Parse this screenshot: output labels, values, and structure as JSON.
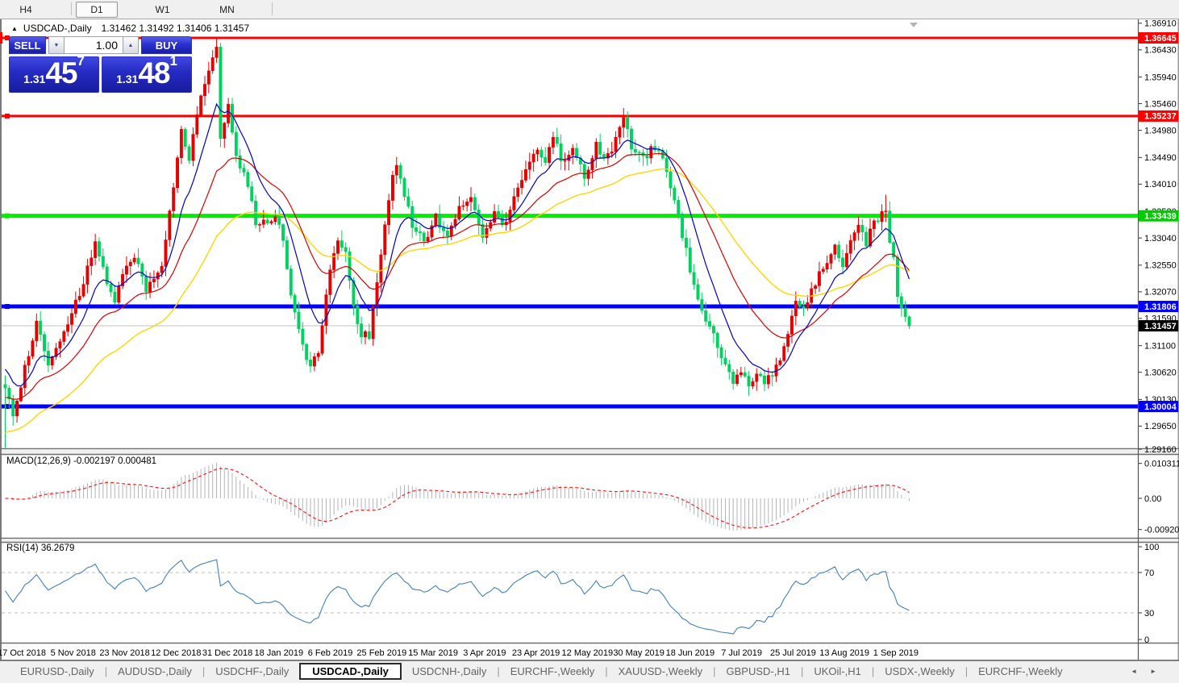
{
  "toolbar": {
    "timeframes": [
      {
        "label": "H4",
        "active": false
      },
      {
        "label": "D1",
        "active": true
      },
      {
        "label": "W1",
        "active": false
      },
      {
        "label": "MN",
        "active": false
      }
    ]
  },
  "chart": {
    "title_symbol": "USDCAD-,Daily",
    "title_ohlc": "1.31462 1.31492 1.31406 1.31457",
    "macd_label": "MACD(12,26,9) -0.002197 0.000481",
    "rsi_label": "RSI(14) 36.2679"
  },
  "trade_widget": {
    "sell_label": "SELL",
    "buy_label": "BUY",
    "volume": "1.00",
    "spinner_down": "▼",
    "spinner_up": "▲",
    "sell_price": {
      "prefix": "1.31",
      "big": "45",
      "sup": "7"
    },
    "buy_price": {
      "prefix": "1.31",
      "big": "48",
      "sup": "1"
    }
  },
  "price_axis": {
    "labels": [
      "1.36910",
      "1.36430",
      "1.35940",
      "1.35460",
      "1.34980",
      "1.34490",
      "1.34010",
      "1.33520",
      "1.33040",
      "1.32550",
      "1.32070",
      "1.31590",
      "1.31100",
      "1.30620",
      "1.30130",
      "1.29650",
      "1.29160"
    ]
  },
  "macd_axis": {
    "labels": [
      {
        "value": 0.010311,
        "text": "0.010311"
      },
      {
        "value": 0.0,
        "text": "0.00"
      },
      {
        "value": -0.009203,
        "text": "-0.009203"
      }
    ]
  },
  "rsi_axis": {
    "labels": [
      {
        "value": 100,
        "text": "100"
      },
      {
        "value": 70,
        "text": "70"
      },
      {
        "value": 30,
        "text": "30"
      },
      {
        "value": 0,
        "text": "0"
      }
    ],
    "dashed_levels": [
      70,
      30
    ]
  },
  "time_axis": {
    "dates": [
      "17 Oct 2018",
      "5 Nov 2018",
      "23 Nov 2018",
      "12 Dec 2018",
      "31 Dec 2018",
      "18 Jan 2019",
      "6 Feb 2019",
      "25 Feb 2019",
      "15 Mar 2019",
      "3 Apr 2019",
      "23 Apr 2019",
      "12 May 2019",
      "30 May 2019",
      "18 Jun 2019",
      "7 Jul 2019",
      "25 Jul 2019",
      "13 Aug 2019",
      "1 Sep 2019"
    ]
  },
  "tabs": {
    "items": [
      {
        "label": "EURUSD-,Daily",
        "active": false
      },
      {
        "label": "AUDUSD-,Daily",
        "active": false
      },
      {
        "label": "USDCHF-,Daily",
        "active": false
      },
      {
        "label": "USDCAD-,Daily",
        "active": true
      },
      {
        "label": "USDCNH-,Daily",
        "active": false
      },
      {
        "label": "EURCHF-,Weekly",
        "active": false
      },
      {
        "label": "XAUUSD-,Weekly",
        "active": false
      },
      {
        "label": "GBPUSD-,H1",
        "active": false
      },
      {
        "label": "UKOil-,H1",
        "active": false
      },
      {
        "label": "USDX-,Weekly",
        "active": false
      },
      {
        "label": "EURCHF-,Weekly",
        "active": false
      }
    ],
    "scroll_left": "◄",
    "scroll_right": "►"
  },
  "chart_data": {
    "type": "candlestick",
    "symbol": "USDCAD-",
    "timeframe": "Daily",
    "ohlc_readout": {
      "open": 1.31462,
      "high": 1.31492,
      "low": 1.31406,
      "close": 1.31457
    },
    "visible_range": {
      "first_label": "17 Oct 2018",
      "last_label": "1 Sep 2019",
      "price_axis_min": 1.2916,
      "price_axis_max": 1.3691
    },
    "current_price": 1.31457,
    "bid": 1.31457,
    "ask": 1.31481,
    "horizontal_lines": [
      {
        "price": 1.36645,
        "color": "#ff0000",
        "width": 3,
        "badge": "#ff0000"
      },
      {
        "price": 1.35237,
        "color": "#ff0000",
        "width": 3,
        "badge": "#ff0000"
      },
      {
        "price": 1.33439,
        "color": "#00ee00",
        "width": 5,
        "badge": "#00cc00"
      },
      {
        "price": 1.31806,
        "color": "#0000ff",
        "width": 5,
        "badge": "#0000ff"
      },
      {
        "price": 1.30004,
        "color": "#0000ff",
        "width": 5,
        "badge": "#0000ff"
      }
    ],
    "indicators": [
      {
        "name": "MACD",
        "params": [
          12,
          26,
          9
        ],
        "value": -0.002197,
        "signal": 0.000481,
        "histogram_color": "#b4b4b4",
        "signal_color": "#ff2020",
        "scale": [
          0.010311,
          0.0,
          -0.009203
        ]
      },
      {
        "name": "RSI",
        "params": [
          14
        ],
        "value": 36.2679,
        "color": "#4080c0",
        "levels": [
          70,
          30
        ]
      },
      {
        "name": "MA-fast",
        "color": "#0000cc",
        "period": 10
      },
      {
        "name": "MA-medium",
        "color": "#dd0000",
        "period": 25
      },
      {
        "name": "MA-slow",
        "color": "#ffd700",
        "period": 50
      }
    ],
    "candle_count": 232,
    "bull_color": "#e60000",
    "bear_color": "#00d25f",
    "price_path_anchors_note": "approximate close-price swing anchors [candle_index, price] read from the chart",
    "price_path_anchors": [
      [
        0,
        1.303
      ],
      [
        2,
        1.2985
      ],
      [
        4,
        1.304
      ],
      [
        8,
        1.315
      ],
      [
        11,
        1.308
      ],
      [
        14,
        1.311
      ],
      [
        17,
        1.3165
      ],
      [
        20,
        1.3225
      ],
      [
        23,
        1.329
      ],
      [
        25,
        1.3245
      ],
      [
        28,
        1.3195
      ],
      [
        31,
        1.325
      ],
      [
        33,
        1.327
      ],
      [
        36,
        1.321
      ],
      [
        40,
        1.326
      ],
      [
        43,
        1.339
      ],
      [
        45,
        1.35
      ],
      [
        47,
        1.345
      ],
      [
        49,
        1.353
      ],
      [
        51,
        1.3585
      ],
      [
        53,
        1.3635
      ],
      [
        54,
        1.3655
      ],
      [
        55,
        1.348
      ],
      [
        57,
        1.3545
      ],
      [
        59,
        1.345
      ],
      [
        62,
        1.34
      ],
      [
        64,
        1.333
      ],
      [
        67,
        1.3335
      ],
      [
        69,
        1.3345
      ],
      [
        71,
        1.33
      ],
      [
        73,
        1.32
      ],
      [
        76,
        1.3105
      ],
      [
        78,
        1.3075
      ],
      [
        80,
        1.3095
      ],
      [
        83,
        1.325
      ],
      [
        85,
        1.3305
      ],
      [
        87,
        1.328
      ],
      [
        89,
        1.318
      ],
      [
        91,
        1.313
      ],
      [
        93,
        1.3125
      ],
      [
        95,
        1.323
      ],
      [
        97,
        1.333
      ],
      [
        99,
        1.342
      ],
      [
        100,
        1.344
      ],
      [
        102,
        1.338
      ],
      [
        104,
        1.333
      ],
      [
        107,
        1.3295
      ],
      [
        110,
        1.334
      ],
      [
        113,
        1.3305
      ],
      [
        116,
        1.3365
      ],
      [
        119,
        1.3375
      ],
      [
        122,
        1.3305
      ],
      [
        125,
        1.3345
      ],
      [
        128,
        1.333
      ],
      [
        131,
        1.3395
      ],
      [
        134,
        1.344
      ],
      [
        136,
        1.3465
      ],
      [
        138,
        1.344
      ],
      [
        140,
        1.349
      ],
      [
        142,
        1.3445
      ],
      [
        145,
        1.3465
      ],
      [
        148,
        1.3415
      ],
      [
        151,
        1.347
      ],
      [
        153,
        1.344
      ],
      [
        155,
        1.3465
      ],
      [
        158,
        1.3525
      ],
      [
        160,
        1.3465
      ],
      [
        163,
        1.3445
      ],
      [
        166,
        1.347
      ],
      [
        168,
        1.344
      ],
      [
        171,
        1.337
      ],
      [
        174,
        1.328
      ],
      [
        176,
        1.3215
      ],
      [
        178,
        1.317
      ],
      [
        180,
        1.3145
      ],
      [
        183,
        1.3085
      ],
      [
        186,
        1.3045
      ],
      [
        188,
        1.3062
      ],
      [
        190,
        1.3035
      ],
      [
        192,
        1.3065
      ],
      [
        194,
        1.304
      ],
      [
        196,
        1.3062
      ],
      [
        198,
        1.309
      ],
      [
        200,
        1.3125
      ],
      [
        202,
        1.3195
      ],
      [
        204,
        1.317
      ],
      [
        206,
        1.3205
      ],
      [
        208,
        1.324
      ],
      [
        210,
        1.326
      ],
      [
        212,
        1.3285
      ],
      [
        214,
        1.325
      ],
      [
        216,
        1.3305
      ],
      [
        218,
        1.3325
      ],
      [
        220,
        1.3295
      ],
      [
        222,
        1.333
      ],
      [
        224,
        1.335
      ],
      [
        225,
        1.336
      ],
      [
        226,
        1.3295
      ],
      [
        227,
        1.3265
      ],
      [
        228,
        1.3205
      ],
      [
        229,
        1.318
      ],
      [
        230,
        1.3165
      ],
      [
        231,
        1.31457
      ]
    ]
  }
}
